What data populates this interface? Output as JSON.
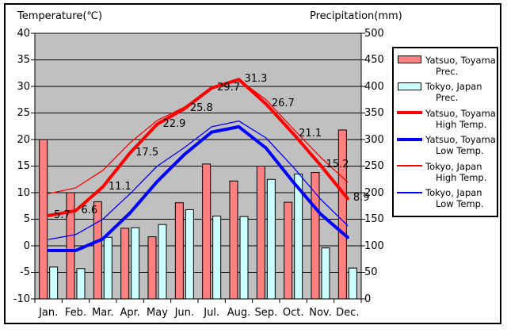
{
  "titles": {
    "left": "Temperature(℃)",
    "right": "Precipitation(mm)"
  },
  "axes": {
    "temp": {
      "label": "Temperature(℃)",
      "min": -10,
      "max": 40,
      "step": 5,
      "ticks": [
        "40",
        "35",
        "30",
        "25",
        "20",
        "15",
        "10",
        "5",
        "0",
        "-5",
        "-10"
      ]
    },
    "precip": {
      "label": "Precipitation(mm)",
      "min": 0,
      "max": 500,
      "step": 50,
      "ticks": [
        "500",
        "450",
        "400",
        "350",
        "300",
        "250",
        "200",
        "150",
        "100",
        "50",
        "0"
      ]
    }
  },
  "chart_data": {
    "type": "combo-bar-line",
    "categories": [
      "Jan.",
      "Feb.",
      "Mar.",
      "Apr.",
      "May",
      "Jun.",
      "Jul.",
      "Aug.",
      "Sep.",
      "Oct.",
      "Nov.",
      "Dec."
    ],
    "series": [
      {
        "name": "Yatsuo, Toyama Prec.",
        "type": "bar",
        "axis": "precip",
        "color": "#FF8080",
        "stroke": "#000000",
        "values": [
          300,
          200,
          183,
          133,
          117,
          181,
          254,
          222,
          250,
          182,
          238,
          318
        ]
      },
      {
        "name": "Tokyo, Japan Prec.",
        "type": "bar",
        "axis": "precip",
        "color": "#CCFFFF",
        "stroke": "#000000",
        "values": [
          60,
          57,
          116,
          134,
          140,
          168,
          156,
          155,
          225,
          235,
          96,
          58
        ]
      },
      {
        "name": "Yatsuo, Toyama High Temp.",
        "type": "line",
        "axis": "temp",
        "color": "#FF0000",
        "width": 4,
        "values": [
          5.7,
          6.6,
          11.1,
          17.5,
          22.9,
          25.8,
          29.7,
          31.3,
          26.7,
          21.1,
          15.2,
          8.9
        ],
        "labeled": true
      },
      {
        "name": "Yatsuo, Toyama Low Temp.",
        "type": "line",
        "axis": "temp",
        "color": "#0000FF",
        "width": 4,
        "values": [
          -0.9,
          -0.9,
          1.3,
          6.2,
          12.1,
          17.2,
          21.4,
          22.4,
          18.4,
          12.0,
          6.0,
          1.6
        ]
      },
      {
        "name": "Tokyo, Japan High Temp.",
        "type": "line",
        "axis": "temp",
        "color": "#FF0000",
        "width": 1.3,
        "values": [
          9.8,
          10.9,
          14.2,
          19.4,
          23.6,
          26.1,
          29.9,
          31.3,
          27.5,
          22.0,
          16.7,
          12.0
        ]
      },
      {
        "name": "Tokyo, Japan Low Temp.",
        "type": "line",
        "axis": "temp",
        "color": "#0000FF",
        "width": 1.3,
        "values": [
          1.2,
          2.1,
          5.0,
          9.8,
          15.0,
          18.5,
          22.4,
          23.5,
          20.3,
          14.8,
          8.8,
          3.8
        ]
      }
    ],
    "point_labels": [
      "5.7",
      "6.6",
      "11.1",
      "17.5",
      "22.9",
      "25.8",
      "29.7",
      "31.3",
      "26.7",
      "21.1",
      "15.2",
      "8.9"
    ],
    "grid": true,
    "legend_position": "right"
  },
  "legend": {
    "entries": [
      {
        "line1": "Yatsuo, Toyama",
        "line2": "Prec.",
        "swatch": "bar",
        "color": "#FF8080"
      },
      {
        "line1": "Tokyo, Japan",
        "line2": "Prec.",
        "swatch": "bar",
        "color": "#CCFFFF"
      },
      {
        "line1": "Yatsuo, Toyama",
        "line2": "High Temp.",
        "swatch": "line-thick",
        "color": "#FF0000"
      },
      {
        "line1": "Yatsuo, Toyama",
        "line2": "Low Temp.",
        "swatch": "line-thick",
        "color": "#0000FF"
      },
      {
        "line1": "Tokyo, Japan",
        "line2": "High Temp.",
        "swatch": "line-thin",
        "color": "#FF0000"
      },
      {
        "line1": "Tokyo, Japan",
        "line2": "Low Temp.",
        "swatch": "line-thin",
        "color": "#0000FF"
      }
    ]
  },
  "colors": {
    "plot_background": "#C0C0C0",
    "axis_line": "#000000",
    "text": "#000000",
    "frame": "#000000"
  }
}
